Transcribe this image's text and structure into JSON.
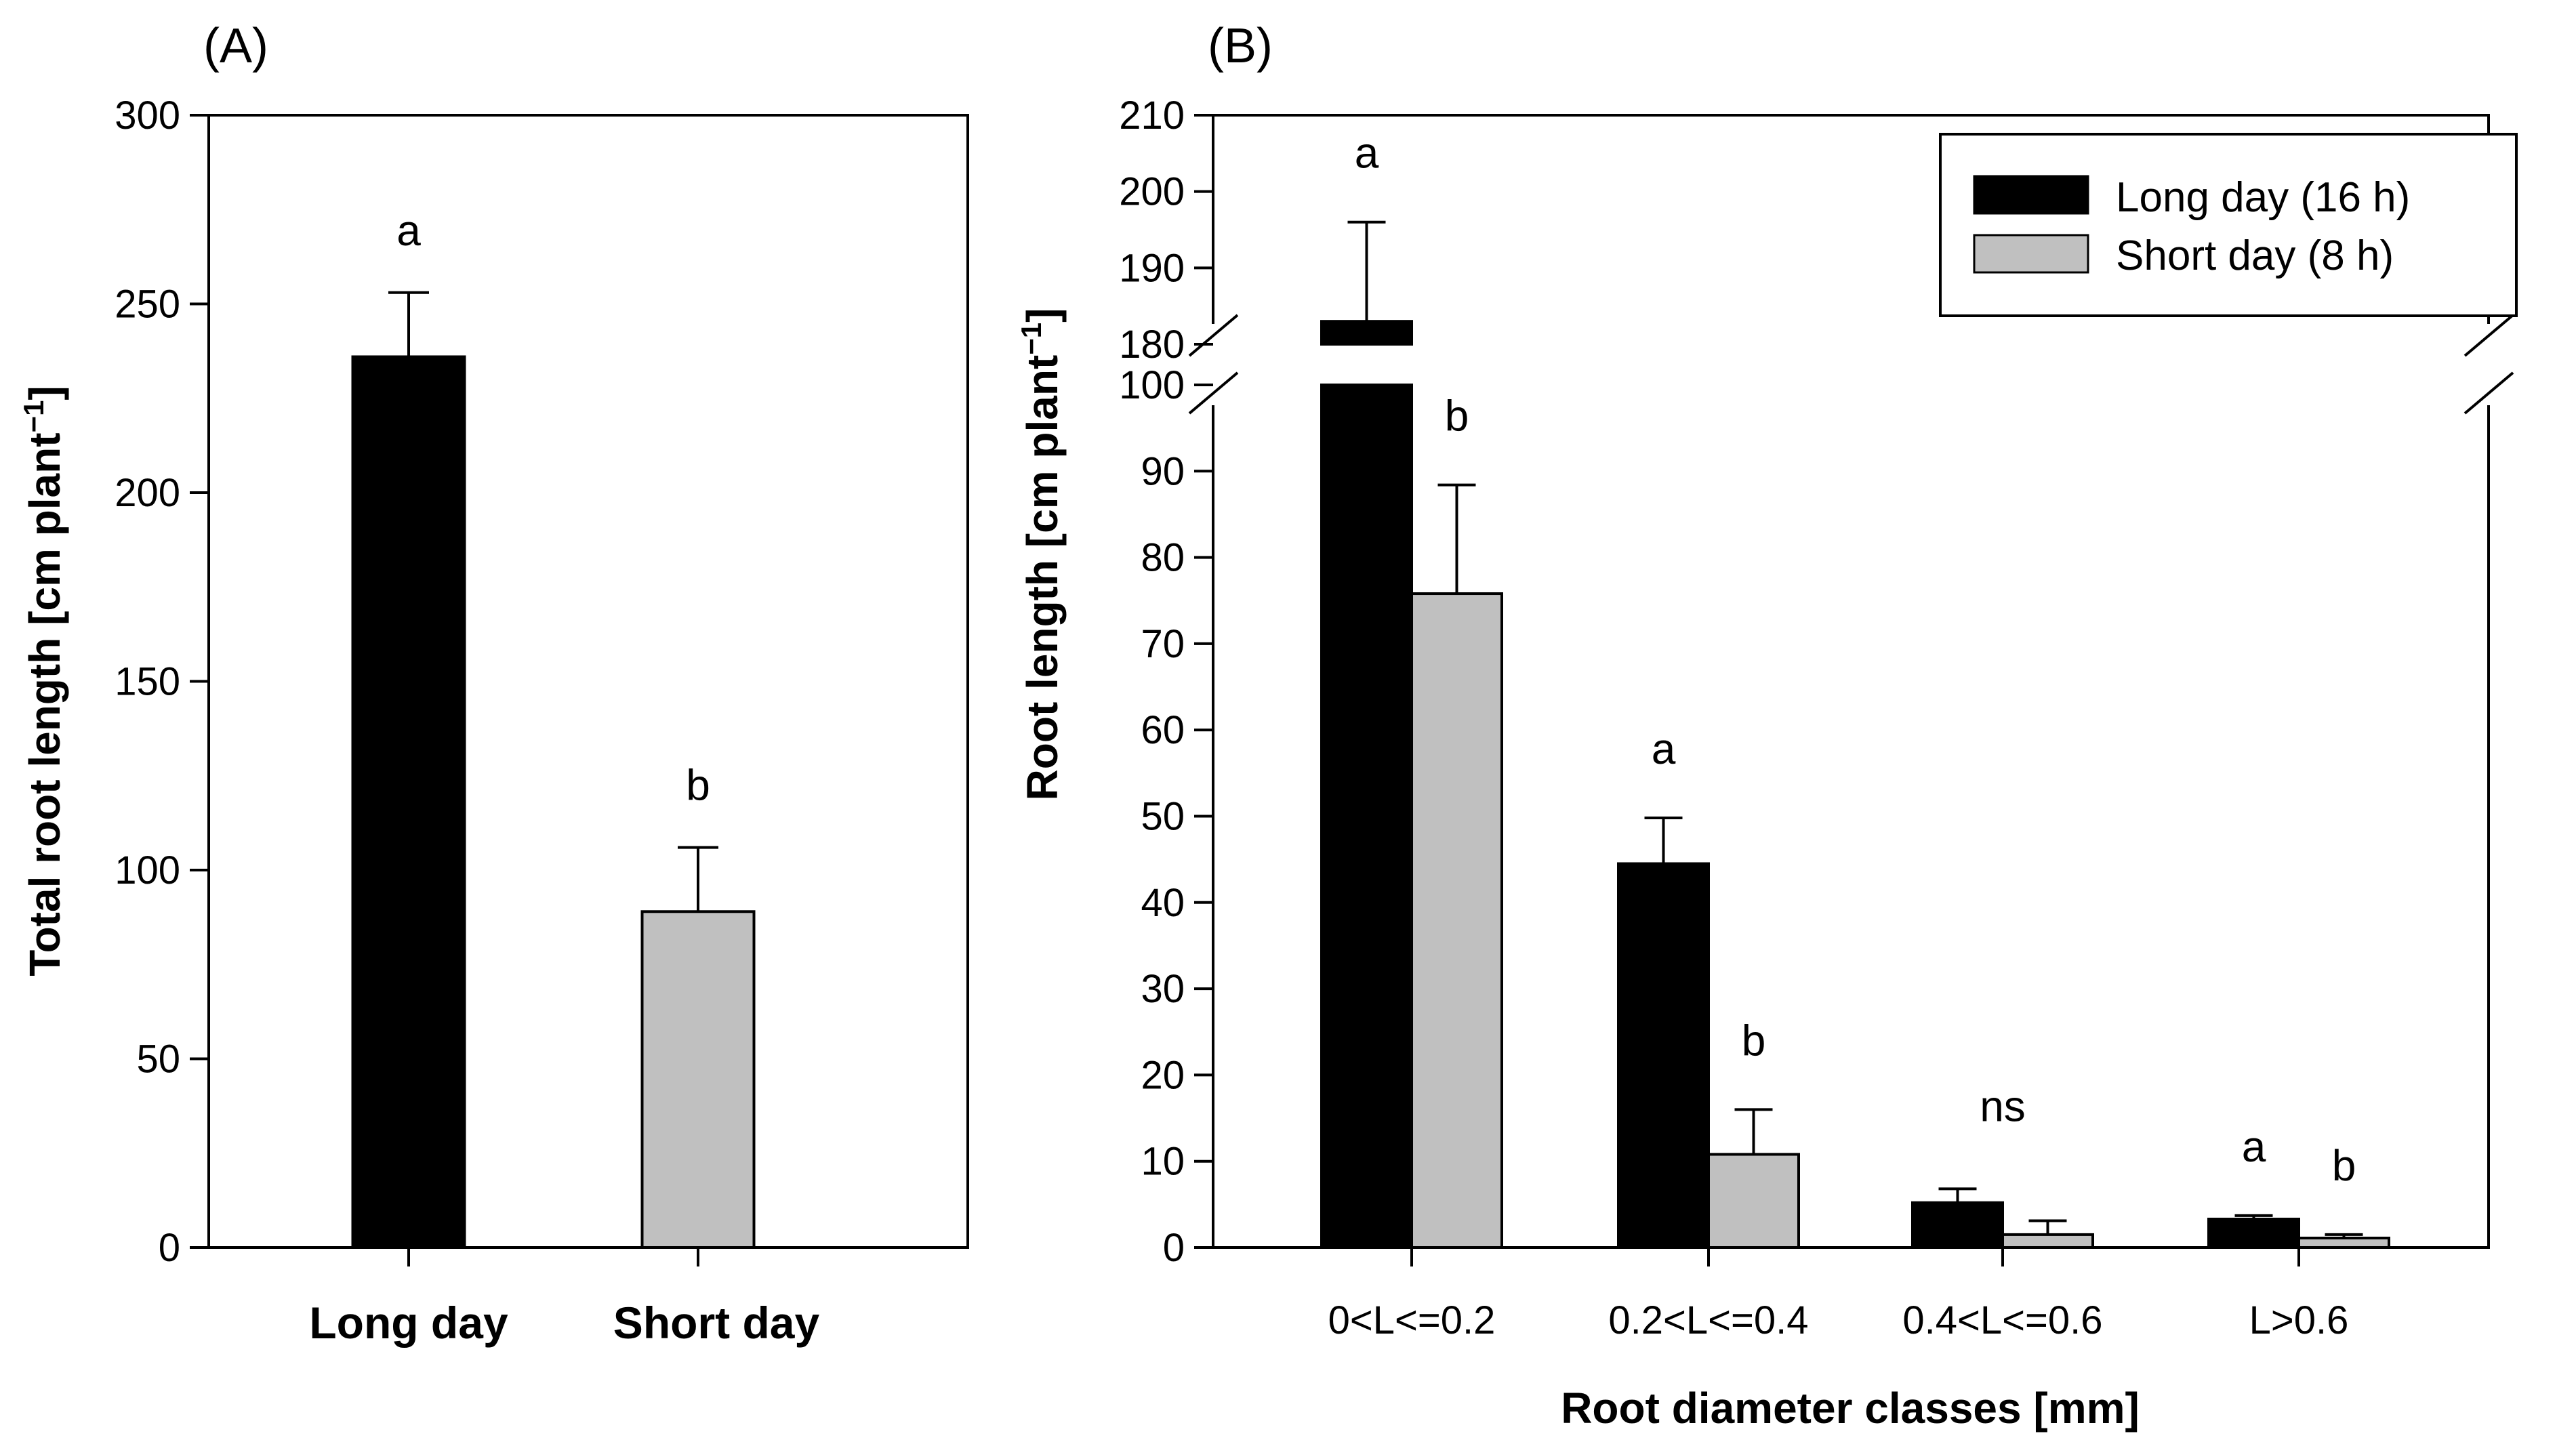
{
  "chart_data": [
    {
      "panel_label": "(A)",
      "type": "bar",
      "ylabel": "Total root length [cm plant⁻¹]",
      "ylabel_main": "Total root length [cm plant",
      "ylabel_sup": "−1",
      "ylabel_end": "]",
      "xlabel": "",
      "ylim": [
        0,
        300
      ],
      "yticks": [
        0,
        50,
        100,
        150,
        200,
        250,
        300
      ],
      "yticks_labels": [
        "0",
        "50",
        "100",
        "150",
        "200",
        "250",
        "300"
      ],
      "categories": [
        "Long day",
        "Short day"
      ],
      "values": [
        236,
        89
      ],
      "errors": [
        17,
        17
      ],
      "colors": [
        "#000000",
        "#c0c0c0"
      ],
      "letters": [
        "a",
        "b"
      ]
    },
    {
      "panel_label": "(B)",
      "type": "bar",
      "ylabel": "Root length [cm plant⁻¹]",
      "ylabel_main": "Root length [cm plant",
      "ylabel_sup": "−1",
      "ylabel_end": "]",
      "xlabel": "Root diameter classes [mm]",
      "broken_axis": {
        "lower_range": [
          0,
          100
        ],
        "upper_range": [
          180,
          210
        ]
      },
      "yticks_labels_lower": [
        "0",
        "10",
        "20",
        "30",
        "40",
        "50",
        "60",
        "70",
        "80",
        "90",
        "100"
      ],
      "yticks_labels_upper": [
        "180",
        "190",
        "200",
        "210"
      ],
      "categories": [
        "0<L<=0.2",
        "0.2<L<=0.4",
        "0.4<L<=0.6",
        "L>0.6"
      ],
      "series": [
        {
          "name": "Long day (16 h)",
          "color": "#000000",
          "values": [
            183,
            44.5,
            5.2,
            3.3
          ],
          "errors": [
            13,
            5.3,
            1.6,
            0.4
          ]
        },
        {
          "name": "Short day (8 h)",
          "color": "#c0c0c0",
          "values": [
            75.8,
            10.8,
            1.5,
            1.1
          ],
          "errors": [
            12.6,
            5.2,
            1.6,
            0.4
          ]
        }
      ],
      "letters": [
        [
          "a",
          "b"
        ],
        [
          "a",
          "b"
        ],
        [
          "ns"
        ],
        [
          "a",
          "b"
        ]
      ],
      "legend_position": "top-right"
    }
  ]
}
